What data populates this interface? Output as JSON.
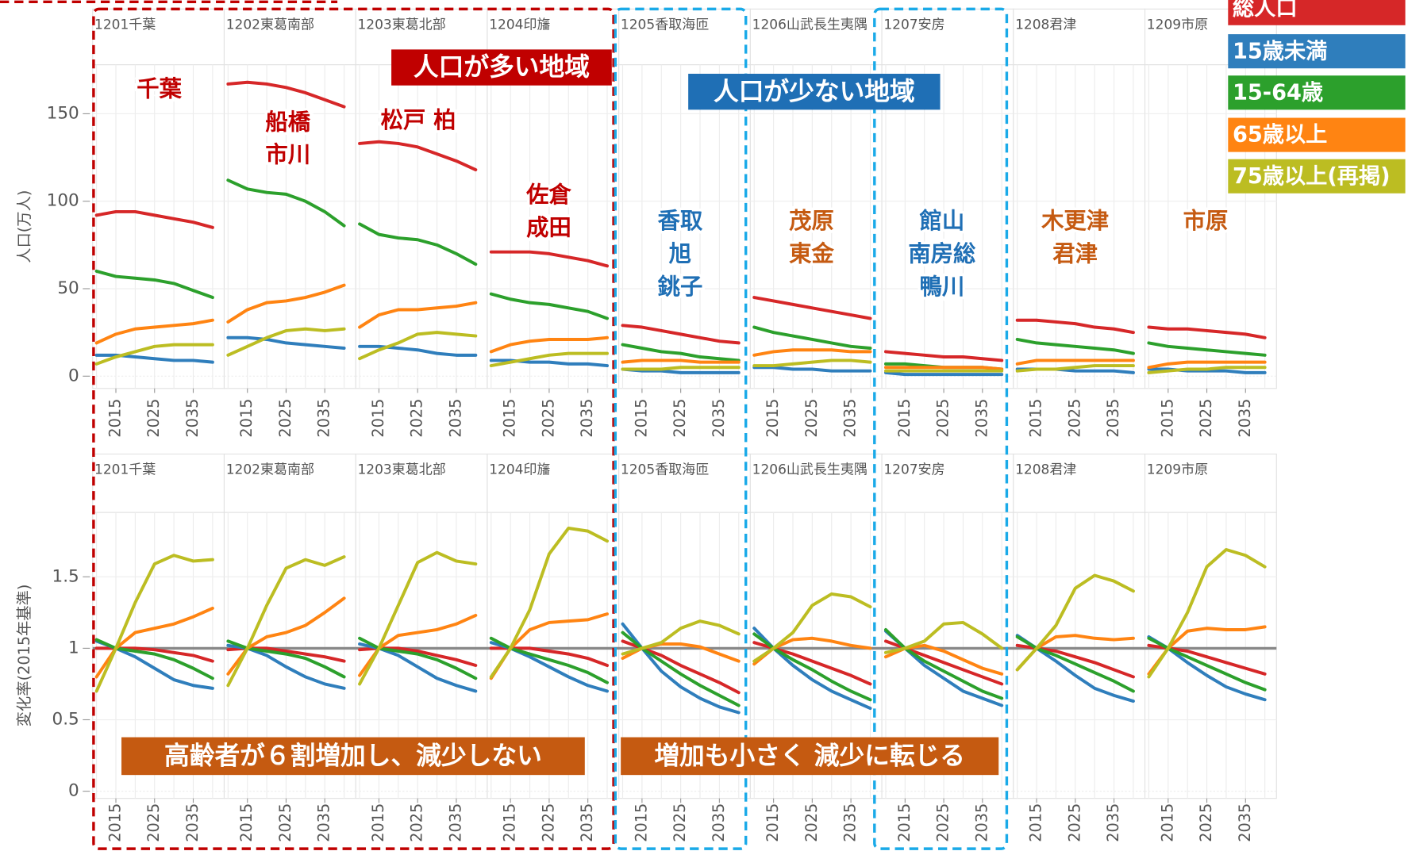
{
  "legend": [
    {
      "name": "総人口",
      "color": "#d62728"
    },
    {
      "name": "15歳未満",
      "color": "#2f7ebc"
    },
    {
      "name": "15-64歳",
      "color": "#2ca02c"
    },
    {
      "name": "65歳以上",
      "color": "#ff8412"
    },
    {
      "name": "75歳以上(再掲)",
      "color": "#bcbd22"
    }
  ],
  "chart_data": [
    {
      "type": "line",
      "ylabel": "人口(万人)",
      "x": [
        2010,
        2015,
        2020,
        2025,
        2030,
        2035,
        2040
      ],
      "xlim": [
        2009,
        2043
      ],
      "xticks": [
        2015,
        2025,
        2035
      ],
      "ylim": [
        -7,
        178
      ],
      "yticks": [
        0,
        50,
        100,
        150
      ],
      "facets": [
        {
          "title": "1201千葉",
          "values": [
            [
              92,
              94,
              94,
              92,
              90,
              88,
              85
            ],
            [
              12,
              12,
              11,
              10,
              9,
              9,
              8
            ],
            [
              60,
              57,
              56,
              55,
              53,
              49,
              45
            ],
            [
              19,
              24,
              27,
              28,
              29,
              30,
              32
            ],
            [
              7,
              11,
              14,
              17,
              18,
              18,
              18
            ]
          ]
        },
        {
          "title": "1202東葛南部",
          "values": [
            [
              167,
              168,
              167,
              165,
              162,
              158,
              154
            ],
            [
              22,
              22,
              21,
              19,
              18,
              17,
              16
            ],
            [
              112,
              107,
              105,
              104,
              100,
              94,
              86
            ],
            [
              31,
              38,
              42,
              43,
              45,
              48,
              52
            ],
            [
              12,
              17,
              22,
              26,
              27,
              26,
              27
            ]
          ]
        },
        {
          "title": "1203東葛北部",
          "values": [
            [
              133,
              134,
              133,
              131,
              127,
              123,
              118
            ],
            [
              17,
              17,
              16,
              15,
              13,
              12,
              12
            ],
            [
              87,
              81,
              79,
              78,
              75,
              70,
              64
            ],
            [
              28,
              35,
              38,
              38,
              39,
              40,
              42
            ],
            [
              10,
              15,
              19,
              24,
              25,
              24,
              23
            ]
          ]
        },
        {
          "title": "1204印旛",
          "values": [
            [
              71,
              71,
              71,
              70,
              68,
              66,
              63
            ],
            [
              9,
              9,
              8,
              8,
              7,
              7,
              6
            ],
            [
              47,
              44,
              42,
              41,
              39,
              37,
              33
            ],
            [
              14,
              18,
              20,
              21,
              21,
              21,
              22
            ],
            [
              6,
              8,
              10,
              12,
              13,
              13,
              13
            ]
          ]
        },
        {
          "title": "1205香取海匝",
          "values": [
            [
              29,
              28,
              26,
              24,
              22,
              20,
              19
            ],
            [
              4,
              3,
              3,
              2,
              2,
              2,
              2
            ],
            [
              18,
              16,
              14,
              13,
              11,
              10,
              9
            ],
            [
              8,
              9,
              9,
              9,
              8,
              8,
              8
            ],
            [
              4,
              4,
              4,
              5,
              5,
              5,
              5
            ]
          ]
        },
        {
          "title": "1206山武長生夷隅",
          "values": [
            [
              45,
              43,
              41,
              39,
              37,
              35,
              33
            ],
            [
              5,
              5,
              4,
              4,
              3,
              3,
              3
            ],
            [
              28,
              25,
              23,
              21,
              19,
              17,
              16
            ],
            [
              12,
              14,
              15,
              15,
              15,
              14,
              14
            ],
            [
              6,
              6,
              7,
              8,
              9,
              9,
              8
            ]
          ]
        },
        {
          "title": "1207安房",
          "values": [
            [
              14,
              13,
              12,
              11,
              11,
              10,
              9
            ],
            [
              2,
              1,
              1,
              1,
              1,
              1,
              1
            ],
            [
              7,
              7,
              6,
              5,
              5,
              5,
              4
            ],
            [
              5,
              5,
              5,
              5,
              5,
              5,
              4
            ],
            [
              3,
              3,
              3,
              3,
              3,
              3,
              3
            ]
          ]
        },
        {
          "title": "1208君津",
          "values": [
            [
              32,
              32,
              31,
              30,
              28,
              27,
              25
            ],
            [
              4,
              4,
              4,
              3,
              3,
              3,
              2
            ],
            [
              21,
              19,
              18,
              17,
              16,
              15,
              13
            ],
            [
              7,
              9,
              9,
              9,
              9,
              9,
              9
            ],
            [
              3,
              4,
              4,
              5,
              6,
              6,
              6
            ]
          ]
        },
        {
          "title": "1209市原",
          "values": [
            [
              28,
              27,
              27,
              26,
              25,
              24,
              22
            ],
            [
              4,
              4,
              3,
              3,
              3,
              2,
              2
            ],
            [
              19,
              17,
              16,
              15,
              14,
              13,
              12
            ],
            [
              5,
              7,
              8,
              8,
              8,
              8,
              8
            ],
            [
              2,
              3,
              4,
              4,
              5,
              5,
              5
            ]
          ]
        }
      ]
    },
    {
      "type": "line",
      "ylabel": "変化率(2015年基準)",
      "x": [
        2010,
        2015,
        2020,
        2025,
        2030,
        2035,
        2040
      ],
      "xlim": [
        2009,
        2043
      ],
      "xticks": [
        2015,
        2025,
        2035
      ],
      "ylim": [
        -0.05,
        1.95
      ],
      "yticks": [
        0,
        0.5,
        1,
        1.5
      ],
      "reference_line": 1,
      "facets": [
        {
          "title": "1201千葉",
          "values": [
            [
              1.0,
              1,
              1,
              0.99,
              0.97,
              0.95,
              0.91
            ],
            [
              1.05,
              1,
              0.94,
              0.86,
              0.78,
              0.74,
              0.72
            ],
            [
              1.06,
              1,
              0.98,
              0.96,
              0.92,
              0.86,
              0.79
            ],
            [
              0.8,
              1,
              1.11,
              1.14,
              1.17,
              1.22,
              1.28
            ],
            [
              0.7,
              1,
              1.32,
              1.59,
              1.65,
              1.61,
              1.62
            ]
          ]
        },
        {
          "title": "1202東葛南部",
          "values": [
            [
              0.99,
              1,
              1,
              0.98,
              0.96,
              0.94,
              0.91
            ],
            [
              1.02,
              1,
              0.95,
              0.87,
              0.8,
              0.75,
              0.72
            ],
            [
              1.05,
              1,
              0.98,
              0.96,
              0.93,
              0.87,
              0.8
            ],
            [
              0.82,
              1,
              1.08,
              1.11,
              1.16,
              1.25,
              1.35
            ],
            [
              0.74,
              1,
              1.3,
              1.56,
              1.62,
              1.58,
              1.64
            ]
          ]
        },
        {
          "title": "1203東葛北部",
          "values": [
            [
              0.99,
              1,
              1,
              0.98,
              0.95,
              0.92,
              0.88
            ],
            [
              1.03,
              1,
              0.95,
              0.87,
              0.79,
              0.74,
              0.7
            ],
            [
              1.07,
              1,
              0.98,
              0.96,
              0.92,
              0.86,
              0.79
            ],
            [
              0.81,
              1,
              1.09,
              1.11,
              1.13,
              1.17,
              1.23
            ],
            [
              0.75,
              1,
              1.3,
              1.6,
              1.67,
              1.61,
              1.59
            ]
          ]
        },
        {
          "title": "1204印旛",
          "values": [
            [
              1.0,
              1,
              1,
              0.98,
              0.96,
              0.93,
              0.88
            ],
            [
              1.04,
              1,
              0.94,
              0.87,
              0.8,
              0.74,
              0.7
            ],
            [
              1.07,
              1,
              0.96,
              0.92,
              0.88,
              0.83,
              0.76
            ],
            [
              0.79,
              1,
              1.13,
              1.18,
              1.19,
              1.2,
              1.24
            ],
            [
              0.8,
              1,
              1.27,
              1.66,
              1.84,
              1.82,
              1.75
            ]
          ]
        },
        {
          "title": "1205香取海匝",
          "values": [
            [
              1.05,
              1,
              0.95,
              0.88,
              0.82,
              0.76,
              0.69
            ],
            [
              1.17,
              1,
              0.84,
              0.73,
              0.65,
              0.59,
              0.55
            ],
            [
              1.11,
              1,
              0.91,
              0.82,
              0.74,
              0.67,
              0.6
            ],
            [
              0.93,
              1,
              1.03,
              1.03,
              1.01,
              0.96,
              0.91
            ],
            [
              0.96,
              1,
              1.04,
              1.14,
              1.19,
              1.16,
              1.1
            ]
          ]
        },
        {
          "title": "1206山武長生夷隅",
          "values": [
            [
              1.04,
              1,
              0.96,
              0.91,
              0.86,
              0.81,
              0.75
            ],
            [
              1.14,
              1,
              0.88,
              0.78,
              0.7,
              0.64,
              0.58
            ],
            [
              1.1,
              1,
              0.92,
              0.85,
              0.77,
              0.7,
              0.64
            ],
            [
              0.89,
              1,
              1.06,
              1.07,
              1.05,
              1.02,
              1.0
            ],
            [
              0.91,
              1,
              1.11,
              1.3,
              1.38,
              1.36,
              1.29
            ]
          ]
        },
        {
          "title": "1207安房",
          "values": [
            [
              1.05,
              1,
              0.95,
              0.9,
              0.85,
              0.8,
              0.75
            ],
            [
              1.12,
              1,
              0.88,
              0.79,
              0.7,
              0.65,
              0.6
            ],
            [
              1.13,
              1,
              0.91,
              0.84,
              0.77,
              0.7,
              0.65
            ],
            [
              0.94,
              1,
              1.02,
              0.98,
              0.92,
              0.86,
              0.82
            ],
            [
              0.97,
              1,
              1.05,
              1.17,
              1.18,
              1.1,
              1.0
            ]
          ]
        },
        {
          "title": "1208君津",
          "values": [
            [
              1.02,
              1,
              0.98,
              0.94,
              0.9,
              0.85,
              0.8
            ],
            [
              1.09,
              1,
              0.91,
              0.81,
              0.72,
              0.67,
              0.63
            ],
            [
              1.08,
              1,
              0.95,
              0.89,
              0.83,
              0.77,
              0.7
            ],
            [
              0.85,
              1,
              1.08,
              1.09,
              1.07,
              1.06,
              1.07
            ],
            [
              0.85,
              1,
              1.16,
              1.42,
              1.51,
              1.47,
              1.4
            ]
          ]
        },
        {
          "title": "1209市原",
          "values": [
            [
              1.02,
              1,
              0.98,
              0.94,
              0.9,
              0.86,
              0.82
            ],
            [
              1.08,
              1,
              0.9,
              0.81,
              0.73,
              0.68,
              0.64
            ],
            [
              1.07,
              1,
              0.94,
              0.88,
              0.82,
              0.76,
              0.71
            ],
            [
              0.82,
              1,
              1.12,
              1.14,
              1.13,
              1.13,
              1.15
            ],
            [
              0.8,
              1,
              1.25,
              1.57,
              1.69,
              1.65,
              1.57
            ]
          ]
        }
      ]
    }
  ],
  "area_labels": [
    {
      "lines": [
        "千葉"
      ],
      "color": "#c00000"
    },
    {
      "lines": [
        "船橋",
        "市川"
      ],
      "color": "#c00000"
    },
    {
      "lines": [
        "松戸 柏"
      ],
      "color": "#c00000"
    },
    {
      "lines": [
        "佐倉",
        "成田"
      ],
      "color": "#c00000"
    },
    {
      "lines": [
        "香取",
        "旭",
        "銚子"
      ],
      "color": "#1f6fb5"
    },
    {
      "lines": [
        "茂原",
        "東金"
      ],
      "color": "#c55a11"
    },
    {
      "lines": [
        "館山",
        "南房総",
        "鴨川"
      ],
      "color": "#1f6fb5"
    },
    {
      "lines": [
        "木更津",
        "君津"
      ],
      "color": "#c55a11"
    },
    {
      "lines": [
        "市原"
      ],
      "color": "#c55a11"
    }
  ],
  "callouts": [
    {
      "text": "人口が多い地域",
      "color": "#c00000"
    },
    {
      "text": "人口が少ない地域",
      "color": "#1f6fb5"
    },
    {
      "text": "高齢者が６割増加し、減少しない",
      "color": "#c55a11"
    },
    {
      "text": "増加も小さく 減少に転じる",
      "color": "#c55a11"
    }
  ]
}
